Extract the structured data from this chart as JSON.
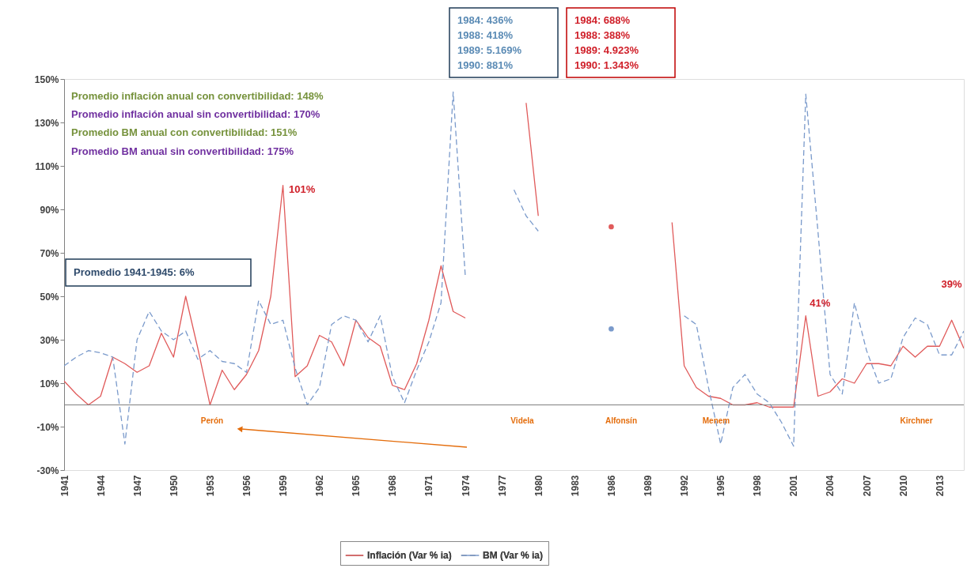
{
  "chart_data": {
    "type": "line",
    "x": [
      1941,
      1942,
      1943,
      1944,
      1945,
      1946,
      1947,
      1948,
      1949,
      1950,
      1951,
      1952,
      1953,
      1954,
      1955,
      1956,
      1957,
      1958,
      1959,
      1960,
      1961,
      1962,
      1963,
      1964,
      1965,
      1966,
      1967,
      1968,
      1969,
      1970,
      1971,
      1972,
      1973,
      1974,
      1975,
      1976,
      1977,
      1978,
      1979,
      1980,
      1981,
      1982,
      1983,
      1984,
      1985,
      1986,
      1987,
      1988,
      1989,
      1990,
      1991,
      1992,
      1993,
      1994,
      1995,
      1996,
      1997,
      1998,
      1999,
      2000,
      2001,
      2002,
      2003,
      2004,
      2005,
      2006,
      2007,
      2008,
      2009,
      2010,
      2011,
      2012,
      2013,
      2014,
      2015
    ],
    "series": [
      {
        "name": "Inflación (Var  % ia)",
        "color": "#e05a5a",
        "line_style": "solid",
        "values": [
          11,
          5,
          0,
          4,
          22,
          19,
          15,
          18,
          33,
          22,
          50,
          26,
          0,
          16,
          7,
          14,
          25,
          50,
          101,
          13,
          18,
          32,
          29,
          18,
          39,
          31,
          27,
          9,
          7,
          19,
          39,
          64,
          43,
          40,
          null,
          null,
          null,
          null,
          139,
          87,
          null,
          null,
          null,
          null,
          null,
          82,
          null,
          null,
          null,
          null,
          84,
          18,
          8,
          4,
          3,
          0,
          0,
          1,
          -1,
          -1,
          -1,
          41,
          4,
          6,
          12,
          10,
          19,
          19,
          18,
          27,
          22,
          27,
          27,
          39,
          26
        ]
      },
      {
        "name": "BM (Var % ia)",
        "color": "#7a9acb",
        "line_style": "dashed",
        "values": [
          18,
          22,
          25,
          24,
          22,
          -18,
          30,
          43,
          34,
          30,
          34,
          21,
          25,
          20,
          19,
          15,
          48,
          37,
          39,
          17,
          0,
          8,
          37,
          41,
          39,
          29,
          41,
          13,
          1,
          16,
          29,
          47,
          144,
          59,
          null,
          null,
          null,
          99,
          87,
          80,
          null,
          null,
          null,
          null,
          null,
          35,
          null,
          null,
          null,
          null,
          null,
          41,
          37,
          8,
          -18,
          8,
          14,
          5,
          1,
          -8,
          -19,
          143,
          80,
          14,
          5,
          47,
          25,
          10,
          12,
          31,
          40,
          37,
          23,
          23,
          34
        ]
      }
    ],
    "xlim": [
      1941,
      2015
    ],
    "xticks": [
      1941,
      1944,
      1947,
      1950,
      1953,
      1956,
      1959,
      1962,
      1965,
      1968,
      1971,
      1974,
      1977,
      1980,
      1983,
      1986,
      1989,
      1992,
      1995,
      1998,
      2001,
      2004,
      2007,
      2010,
      2013
    ],
    "ylim": [
      -30,
      150
    ],
    "yticks": [
      {
        "value": -30,
        "label": "-30%"
      },
      {
        "value": -10,
        "label": "-10%"
      },
      {
        "value": 10,
        "label": "10%"
      },
      {
        "value": 30,
        "label": "30%"
      },
      {
        "value": 50,
        "label": "50%"
      },
      {
        "value": 70,
        "label": "70%"
      },
      {
        "value": 90,
        "label": "90%"
      },
      {
        "value": 110,
        "label": "110%"
      },
      {
        "value": 130,
        "label": "130%"
      },
      {
        "value": 150,
        "label": "150%"
      }
    ],
    "ref_lines": [
      {
        "axis": "y",
        "value": 0,
        "color": "#808080"
      }
    ],
    "grid": false,
    "legend": "bottom",
    "marker": "none",
    "annotations": [
      "Promedio inflación anual con convertibilidad: 148%",
      "Promedio inflación anual sin convertibilidad: 170%",
      "Promedio BM anual con convertibilidad: 151%",
      "Promedio BM anual sin convertibilidad: 175%",
      "Promedio 1941-1945: 6%",
      "1984: 436%\n1988: 418%\n1989: 5.169%\n1990: 881%",
      "1984: 688%\n1988: 388%\n1989: 4.923%\n1990: 1.343%",
      {
        "text": "101%",
        "x": 1959,
        "y": 101
      },
      {
        "text": "41%",
        "x": 2002,
        "y": 41
      },
      {
        "text": "39%",
        "x": 2014,
        "y": 39
      },
      "Perón",
      "Videla",
      "Alfonsín",
      "Menem",
      "Kirchner"
    ]
  }
}
